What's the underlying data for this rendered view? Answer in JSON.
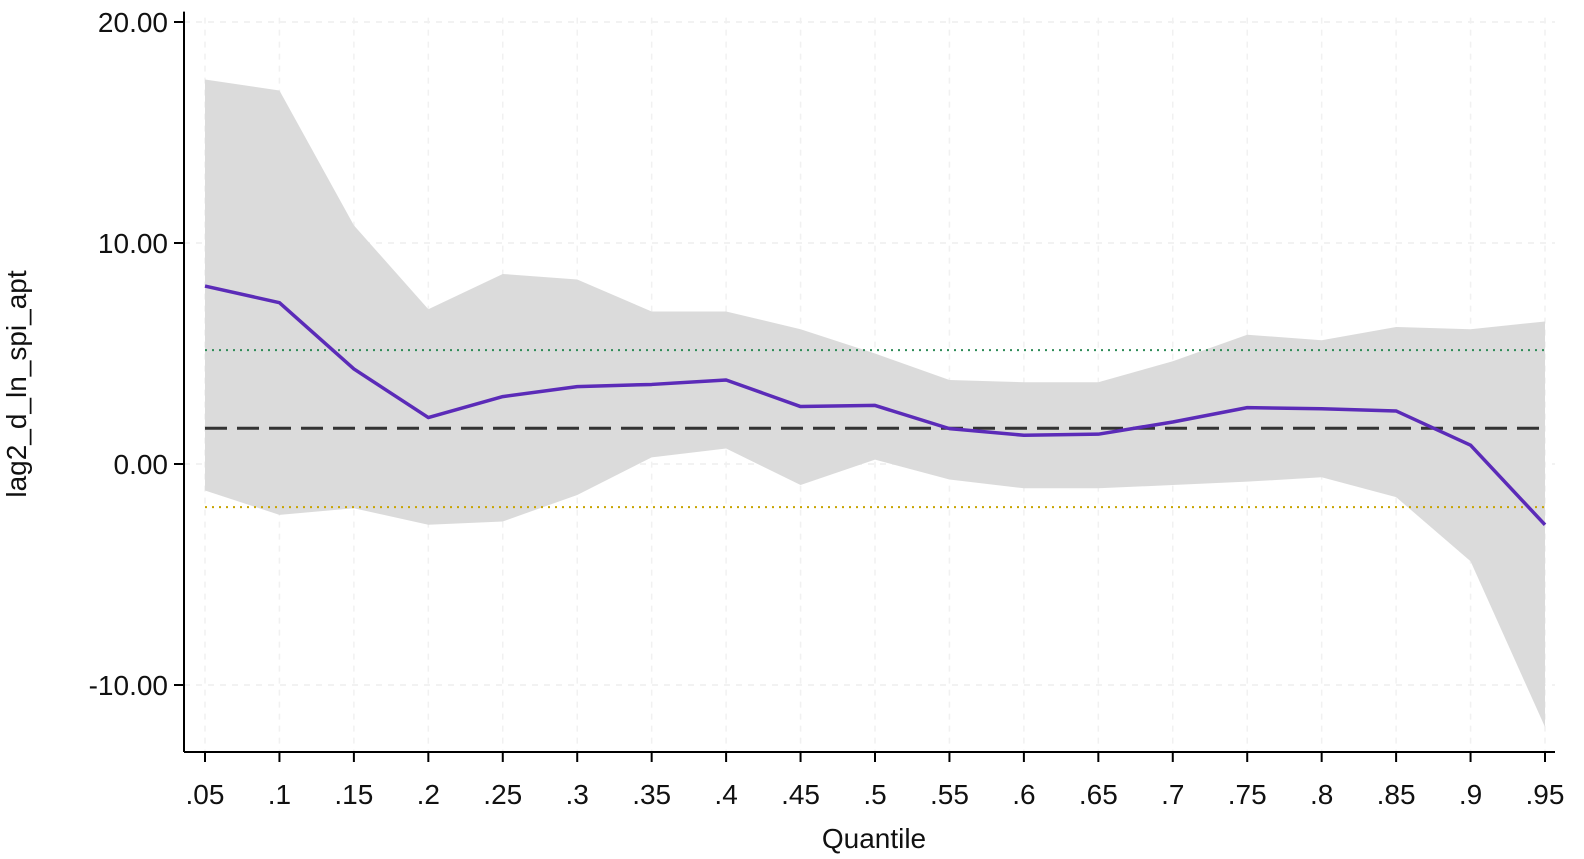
{
  "chart_data": {
    "type": "line",
    "title": "",
    "xlabel": "Quantile",
    "ylabel": "lag2_d_ln_spi_apt",
    "x": [
      0.05,
      0.1,
      0.15,
      0.2,
      0.25,
      0.3,
      0.35,
      0.4,
      0.45,
      0.5,
      0.55,
      0.6,
      0.65,
      0.7,
      0.75,
      0.8,
      0.85,
      0.9,
      0.95
    ],
    "x_tick_labels": [
      ".05",
      ".1",
      ".15",
      ".2",
      ".25",
      ".3",
      ".35",
      ".4",
      ".45",
      ".5",
      ".55",
      ".6",
      ".65",
      ".7",
      ".75",
      ".8",
      ".85",
      ".9",
      ".95"
    ],
    "y_ticks": [
      -10,
      0,
      10,
      20
    ],
    "y_tick_labels": [
      "-10.00",
      "0.00",
      "10.00",
      "20.00"
    ],
    "xlim": [
      0.05,
      0.95
    ],
    "ylim": [
      -13,
      20.2
    ],
    "grid": true,
    "series": [
      {
        "values": [
          8.05,
          7.3,
          4.3,
          2.1,
          3.05,
          3.5,
          3.6,
          3.8,
          2.6,
          2.65,
          1.6,
          1.3,
          1.35,
          1.9,
          2.55,
          2.5,
          2.4,
          0.85,
          -2.75
        ],
        "color": "#5b2bb8"
      }
    ],
    "confidence_band": {
      "lower": [
        -1.2,
        -2.3,
        -2.0,
        -2.75,
        -2.6,
        -1.4,
        0.3,
        0.7,
        -0.95,
        0.2,
        -0.7,
        -1.1,
        -1.1,
        -0.95,
        -0.8,
        -0.6,
        -1.5,
        -4.4,
        -11.9
      ],
      "upper": [
        17.4,
        16.9,
        10.8,
        7.0,
        8.6,
        8.35,
        6.9,
        6.9,
        6.1,
        5.0,
        3.8,
        3.7,
        3.7,
        4.65,
        5.85,
        5.6,
        6.2,
        6.1,
        6.45
      ],
      "color": "#d9d9d9"
    },
    "reference_lines": [
      {
        "style": "dashed",
        "y": 1.62,
        "color": "#333333"
      },
      {
        "style": "dotted",
        "y": 5.15,
        "color": "#2e8b57"
      },
      {
        "style": "dotted",
        "y": -1.95,
        "color": "#c8a400"
      }
    ]
  }
}
